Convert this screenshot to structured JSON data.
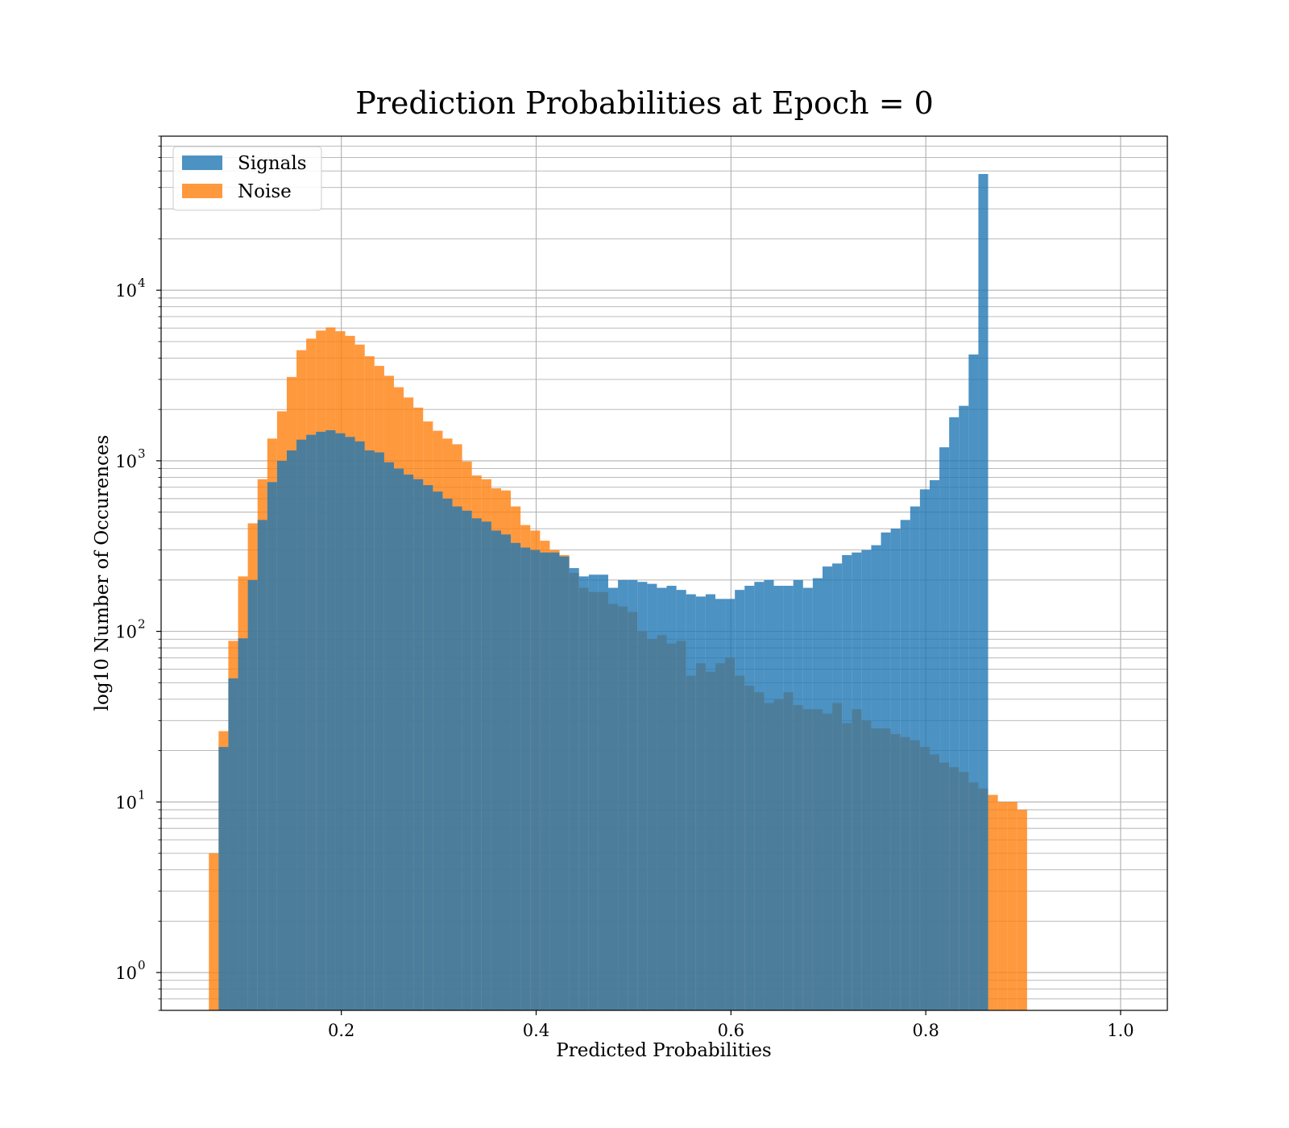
{
  "chart_data": {
    "type": "bar",
    "subtype": "histogram",
    "title": "Prediction Probabilities at Epoch = 0",
    "xlabel": "Predicted Probabilities",
    "ylabel": "log10 Number of Occurences",
    "yscale": "log",
    "xlim": [
      0.015,
      1.048
    ],
    "ylim": [
      0.6,
      80000
    ],
    "grid": true,
    "legend_position": "upper-left",
    "x_ticks": [
      "0.2",
      "0.4",
      "0.6",
      "0.8",
      "1.0"
    ],
    "y_ticks": [
      {
        "base": "10",
        "exp": "0"
      },
      {
        "base": "10",
        "exp": "1"
      },
      {
        "base": "10",
        "exp": "2"
      },
      {
        "base": "10",
        "exp": "3"
      },
      {
        "base": "10",
        "exp": "4"
      }
    ],
    "bin_edges": [
      0.074,
      0.084,
      0.094,
      0.104,
      0.114,
      0.124,
      0.134,
      0.144,
      0.154,
      0.164,
      0.174,
      0.184,
      0.194,
      0.204,
      0.214,
      0.224,
      0.234,
      0.244,
      0.254,
      0.264,
      0.274,
      0.284,
      0.294,
      0.304,
      0.314,
      0.324,
      0.334,
      0.344,
      0.354,
      0.364,
      0.374,
      0.384,
      0.394,
      0.404,
      0.414,
      0.424,
      0.434,
      0.444,
      0.454,
      0.464,
      0.474,
      0.484,
      0.494,
      0.504,
      0.514,
      0.524,
      0.534,
      0.544,
      0.554,
      0.564,
      0.574,
      0.584,
      0.594,
      0.604,
      0.614,
      0.624,
      0.634,
      0.644,
      0.654,
      0.664,
      0.674,
      0.684,
      0.694,
      0.704,
      0.714,
      0.724,
      0.734,
      0.744,
      0.754,
      0.764,
      0.774,
      0.784,
      0.794,
      0.804,
      0.814,
      0.824,
      0.834,
      0.844,
      0.854,
      0.864,
      0.874,
      0.884,
      0.894,
      0.904,
      0.914,
      0.924,
      0.934,
      0.944,
      0.954,
      0.964,
      0.974,
      0.984,
      0.994,
      1.0
    ],
    "series": [
      {
        "name": "Signals",
        "color": "#1f77b4",
        "opacity": 0.8,
        "bin_start": 0.074,
        "bin_width": 0.01,
        "values": [
          21,
          53,
          91,
          200,
          450,
          750,
          1000,
          1150,
          1330,
          1420,
          1480,
          1510,
          1450,
          1380,
          1300,
          1150,
          1120,
          980,
          900,
          830,
          780,
          720,
          660,
          600,
          540,
          510,
          460,
          440,
          390,
          370,
          330,
          310,
          300,
          290,
          290,
          275,
          235,
          210,
          215,
          215,
          180,
          200,
          200,
          195,
          190,
          180,
          185,
          175,
          165,
          160,
          165,
          155,
          155,
          175,
          185,
          195,
          200,
          185,
          185,
          200,
          180,
          205,
          240,
          250,
          280,
          290,
          300,
          320,
          380,
          400,
          450,
          540,
          680,
          770,
          1200,
          1800,
          2100,
          4200,
          48000
        ]
      },
      {
        "name": "Noise",
        "color": "#ff7f0e",
        "opacity": 0.8,
        "bin_start": 0.064,
        "bin_width": 0.01,
        "values": [
          5,
          26,
          88,
          210,
          430,
          780,
          1350,
          1950,
          3100,
          4450,
          5200,
          5800,
          6050,
          5750,
          5400,
          4800,
          4100,
          3600,
          3150,
          2700,
          2350,
          2050,
          1700,
          1500,
          1350,
          1250,
          990,
          820,
          780,
          690,
          670,
          540,
          420,
          390,
          340,
          300,
          280,
          220,
          180,
          170,
          170,
          145,
          140,
          130,
          100,
          90,
          95,
          85,
          88,
          55,
          65,
          58,
          65,
          70,
          55,
          48,
          44,
          38,
          40,
          44,
          37,
          35,
          35,
          33,
          38,
          29,
          35,
          30,
          27,
          27,
          25,
          24,
          23,
          21,
          19,
          17,
          16,
          15,
          13,
          12,
          11,
          10,
          10,
          9
        ]
      }
    ]
  }
}
